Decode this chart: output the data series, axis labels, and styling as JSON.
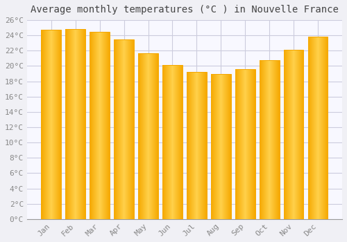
{
  "title": "Average monthly temperatures (°C ) in Nouvelle France",
  "months": [
    "Jan",
    "Feb",
    "Mar",
    "Apr",
    "May",
    "Jun",
    "Jul",
    "Aug",
    "Sep",
    "Oct",
    "Nov",
    "Dec"
  ],
  "values": [
    24.7,
    24.8,
    24.5,
    23.5,
    21.7,
    20.1,
    19.2,
    19.0,
    19.6,
    20.8,
    22.1,
    23.8
  ],
  "bar_color_center": "#FFD04A",
  "bar_color_edge": "#F5A800",
  "background_color": "#F0F0F5",
  "plot_bg_color": "#F8F8FF",
  "grid_color": "#CCCCDD",
  "ylim": [
    0,
    26
  ],
  "ytick_step": 2,
  "title_fontsize": 10,
  "tick_fontsize": 8,
  "font_family": "monospace"
}
